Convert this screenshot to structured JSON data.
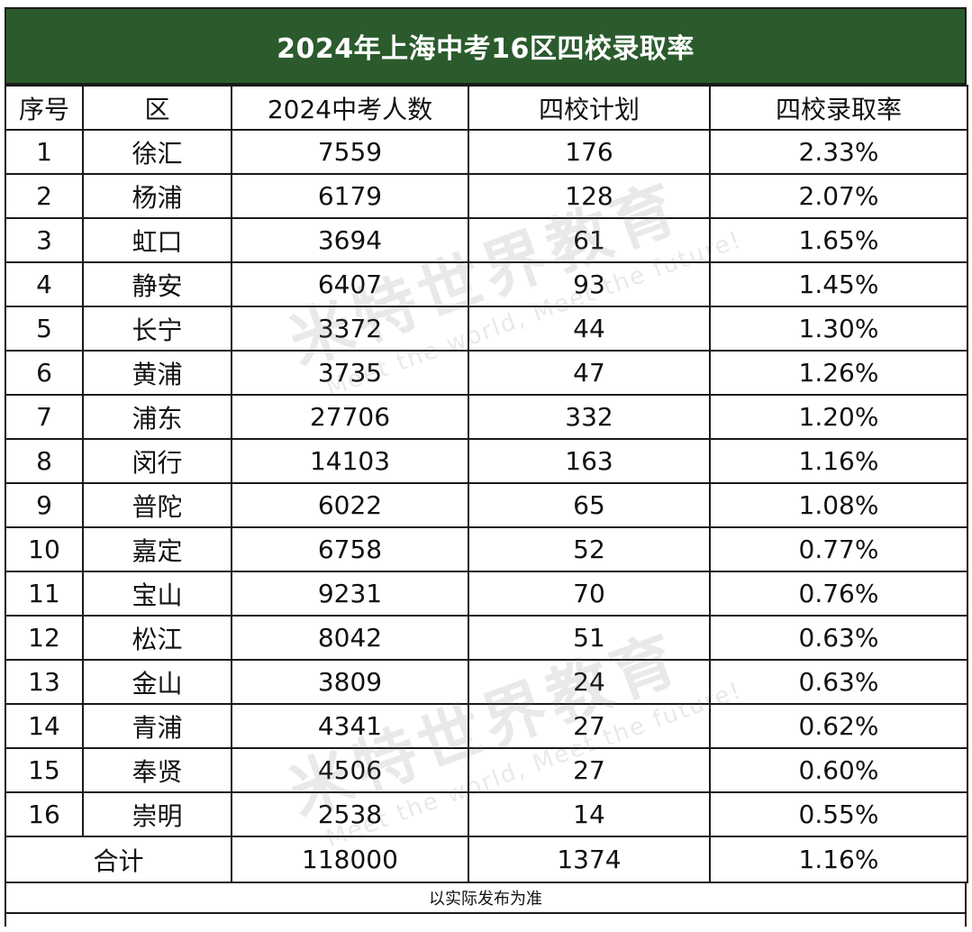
{
  "title": "2024年上海中考16区四校录取率",
  "headers": [
    "序号",
    "区",
    "2024中考人数",
    "四校计划",
    "四校录取率"
  ],
  "rows": [
    [
      "1",
      "徐汇",
      "7559",
      "176",
      "2.33%"
    ],
    [
      "2",
      "杨浦",
      "6179",
      "128",
      "2.07%"
    ],
    [
      "3",
      "虹口",
      "3694",
      "61",
      "1.65%"
    ],
    [
      "4",
      "静安",
      "6407",
      "93",
      "1.45%"
    ],
    [
      "5",
      "长宁",
      "3372",
      "44",
      "1.30%"
    ],
    [
      "6",
      "黄浦",
      "3735",
      "47",
      "1.26%"
    ],
    [
      "7",
      "浦东",
      "27706",
      "332",
      "1.20%"
    ],
    [
      "8",
      "闵行",
      "14103",
      "163",
      "1.16%"
    ],
    [
      "9",
      "普陀",
      "6022",
      "65",
      "1.08%"
    ],
    [
      "10",
      "嘉定",
      "6758",
      "52",
      "0.77%"
    ],
    [
      "11",
      "宝山",
      "9231",
      "70",
      "0.76%"
    ],
    [
      "12",
      "松江",
      "8042",
      "51",
      "0.63%"
    ],
    [
      "13",
      "金山",
      "3809",
      "24",
      "0.63%"
    ],
    [
      "14",
      "青浦",
      "4341",
      "27",
      "0.62%"
    ],
    [
      "15",
      "奉贤",
      "4506",
      "27",
      "0.60%"
    ],
    [
      "16",
      "崇明",
      "2538",
      "14",
      "0.55%"
    ]
  ],
  "total": {
    "label": "合计",
    "students": "118000",
    "plan": "1374",
    "rate": "1.16%"
  },
  "note": "以实际发布为准",
  "watermark": {
    "brand": "米特世界教育",
    "slogan": "Meet the world, Meet the future!"
  },
  "colors": {
    "title_bg": "#2b5b2c",
    "title_text": "#ffffff"
  }
}
